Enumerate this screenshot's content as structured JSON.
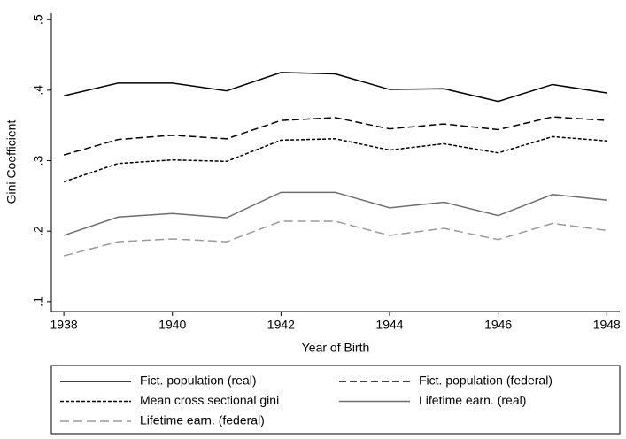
{
  "chart_data": {
    "type": "line",
    "xlabel": "Year of Birth",
    "ylabel": "Gini Coefficient",
    "x": [
      1938,
      1939,
      1940,
      1941,
      1942,
      1943,
      1944,
      1945,
      1946,
      1947,
      1948
    ],
    "xlim": [
      1937.77,
      1948.24
    ],
    "xticks": [
      1938,
      1940,
      1942,
      1944,
      1946,
      1948
    ],
    "ylim": [
      0.086,
      0.509
    ],
    "yticks": [
      {
        "value": 0.1,
        "label": ".1"
      },
      {
        "value": 0.2,
        "label": ".2"
      },
      {
        "value": 0.3,
        "label": ".3"
      },
      {
        "value": 0.4,
        "label": ".4"
      },
      {
        "value": 0.5,
        "label": ".5"
      }
    ],
    "grid": false,
    "legend": "bottom",
    "series": [
      {
        "name": "Fict. population (real)",
        "color": "#000000",
        "dash": "none",
        "values": [
          0.392,
          0.41,
          0.41,
          0.399,
          0.425,
          0.423,
          0.401,
          0.402,
          0.384,
          0.408,
          0.396
        ]
      },
      {
        "name": "Fict. population (federal)",
        "color": "#000000",
        "dash": "8,4",
        "values": [
          0.308,
          0.33,
          0.336,
          0.331,
          0.357,
          0.361,
          0.345,
          0.352,
          0.344,
          0.362,
          0.357
        ]
      },
      {
        "name": "Mean cross sectional gini",
        "color": "#000000",
        "dash": "4,2",
        "values": [
          0.27,
          0.296,
          0.301,
          0.299,
          0.329,
          0.331,
          0.315,
          0.324,
          0.311,
          0.334,
          0.328
        ]
      },
      {
        "name": "Lifetime earn. (real)",
        "color": "#6e6e6e",
        "dash": "none",
        "values": [
          0.194,
          0.22,
          0.225,
          0.219,
          0.255,
          0.255,
          0.233,
          0.241,
          0.222,
          0.252,
          0.244
        ]
      },
      {
        "name": "Lifetime earn. (federal)",
        "color": "#9a9a9a",
        "dash": "10,5",
        "values": [
          0.165,
          0.185,
          0.189,
          0.185,
          0.214,
          0.214,
          0.194,
          0.204,
          0.188,
          0.211,
          0.201
        ]
      }
    ]
  }
}
